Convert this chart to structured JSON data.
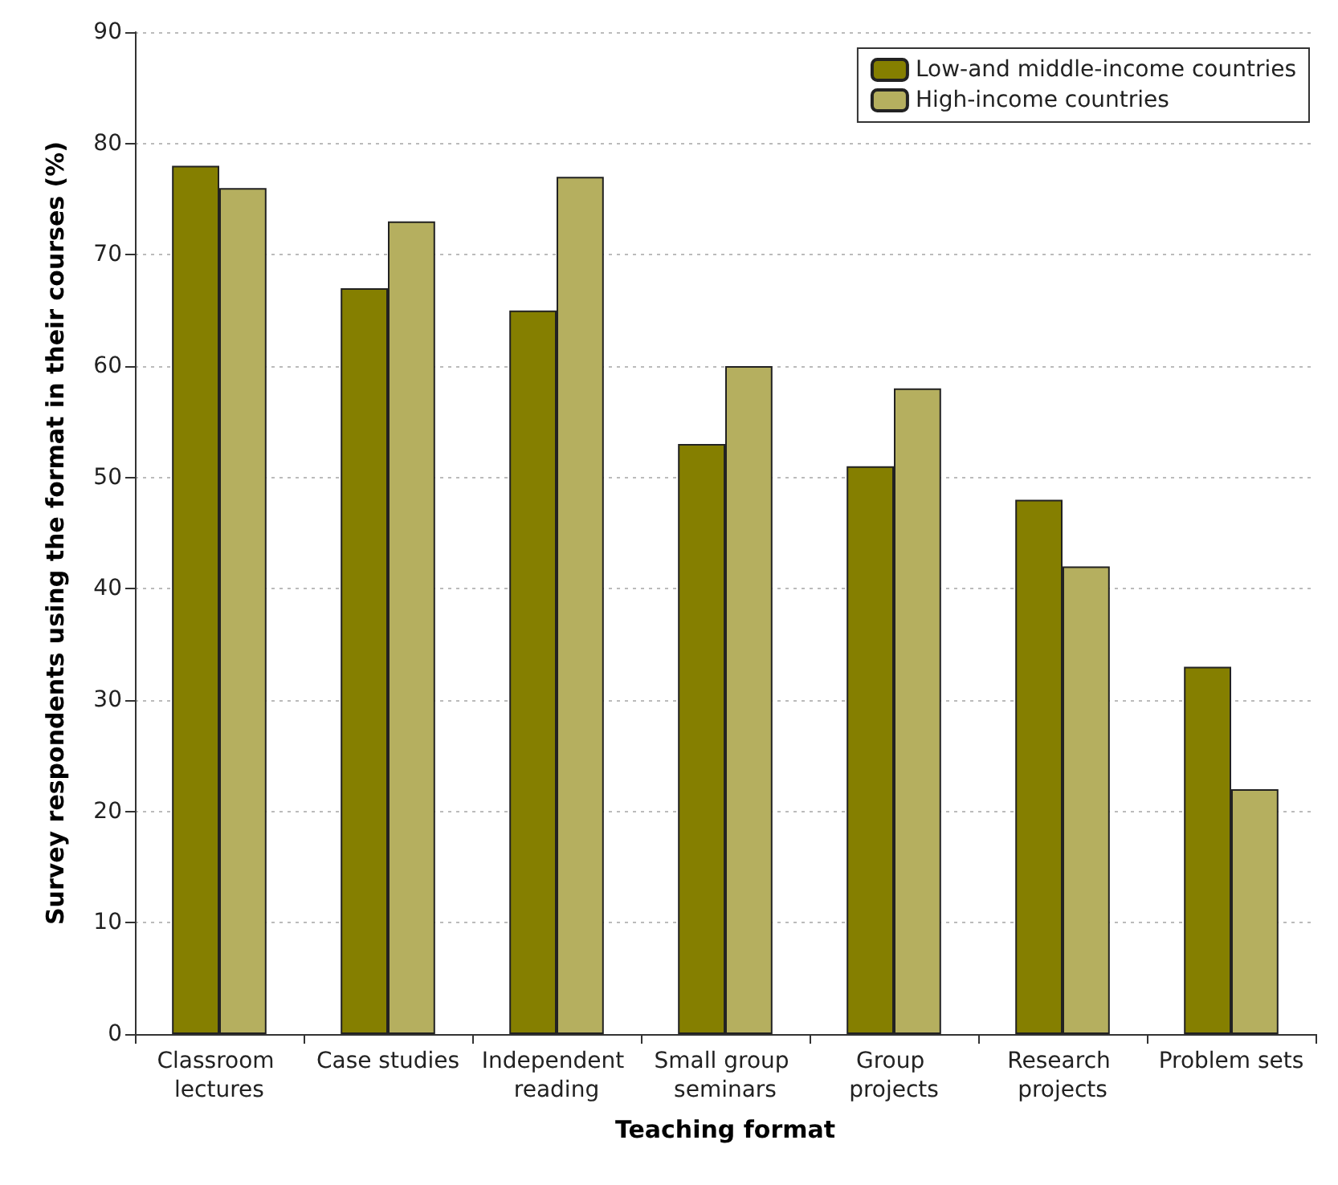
{
  "chart_data": {
    "type": "bar",
    "xlabel": "Teaching format",
    "ylabel": "Survey respondents using the format in their courses (%)",
    "categories": [
      "Classroom lectures",
      "Case studies",
      "Independent reading",
      "Small group seminars",
      "Group projects",
      "Research projects",
      "Problem sets"
    ],
    "series": [
      {
        "name": "Low-and middle-income countries",
        "color": "#857f00",
        "values": [
          78,
          67,
          65,
          53,
          51,
          48,
          33
        ]
      },
      {
        "name": "High-income countries",
        "color": "#b5af5f",
        "values": [
          76,
          73,
          77,
          60,
          58,
          42,
          22
        ]
      }
    ],
    "ylim": [
      0,
      90
    ],
    "yticks": [
      0,
      10,
      20,
      30,
      40,
      50,
      60,
      70,
      80,
      90
    ],
    "grid": "y",
    "legend": "top right"
  }
}
